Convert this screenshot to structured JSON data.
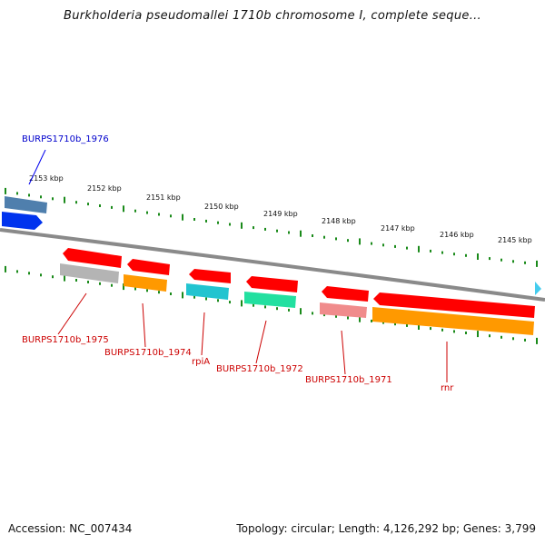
{
  "title": "Burkholderia pseudomallei 1710b chromosome I, complete seque...",
  "footer": {
    "accession": "Accession: NC_007434",
    "summary": "Topology: circular; Length: 4,126,292 bp; Genes: 3,799"
  },
  "scale_labels": [
    "2153 kbp",
    "2152 kbp",
    "2151 kbp",
    "2150 kbp",
    "2149 kbp",
    "2148 kbp",
    "2147 kbp",
    "2146 kbp",
    "2145 kbp"
  ],
  "genes": [
    {
      "id": "BURPS1710b_1976",
      "label": "BURPS1710b_1976",
      "strand": "forward",
      "color": "#0000ff"
    },
    {
      "id": "BURPS1710b_1975",
      "label": "BURPS1710b_1975",
      "strand": "reverse",
      "color": "#ff0000"
    },
    {
      "id": "BURPS1710b_1974",
      "label": "BURPS1710b_1974",
      "strand": "reverse",
      "color": "#ff0000"
    },
    {
      "id": "rpiA",
      "label": "rpiA",
      "strand": "reverse",
      "color": "#ff0000"
    },
    {
      "id": "BURPS1710b_1972",
      "label": "BURPS1710b_1972",
      "strand": "reverse",
      "color": "#ff0000"
    },
    {
      "id": "BURPS1710b_1971",
      "label": "BURPS1710b_1971",
      "strand": "reverse",
      "color": "#ff0000"
    },
    {
      "id": "rnr",
      "label": "rnr",
      "strand": "reverse",
      "color": "#ff0000"
    }
  ],
  "colors": {
    "backbone": "#808080",
    "ticks": "#1a8a1a",
    "forward_label": "#0000cc",
    "reverse_label": "#cc0000",
    "cog_steelblue": "#4f7fad",
    "cog_gray": "#b4b4b4",
    "cog_orange": "#ff9900",
    "cog_cyan": "#22c4d0",
    "cog_green": "#22e0a0",
    "cog_pink": "#f08c8c",
    "end_marker": "#44ccee"
  }
}
